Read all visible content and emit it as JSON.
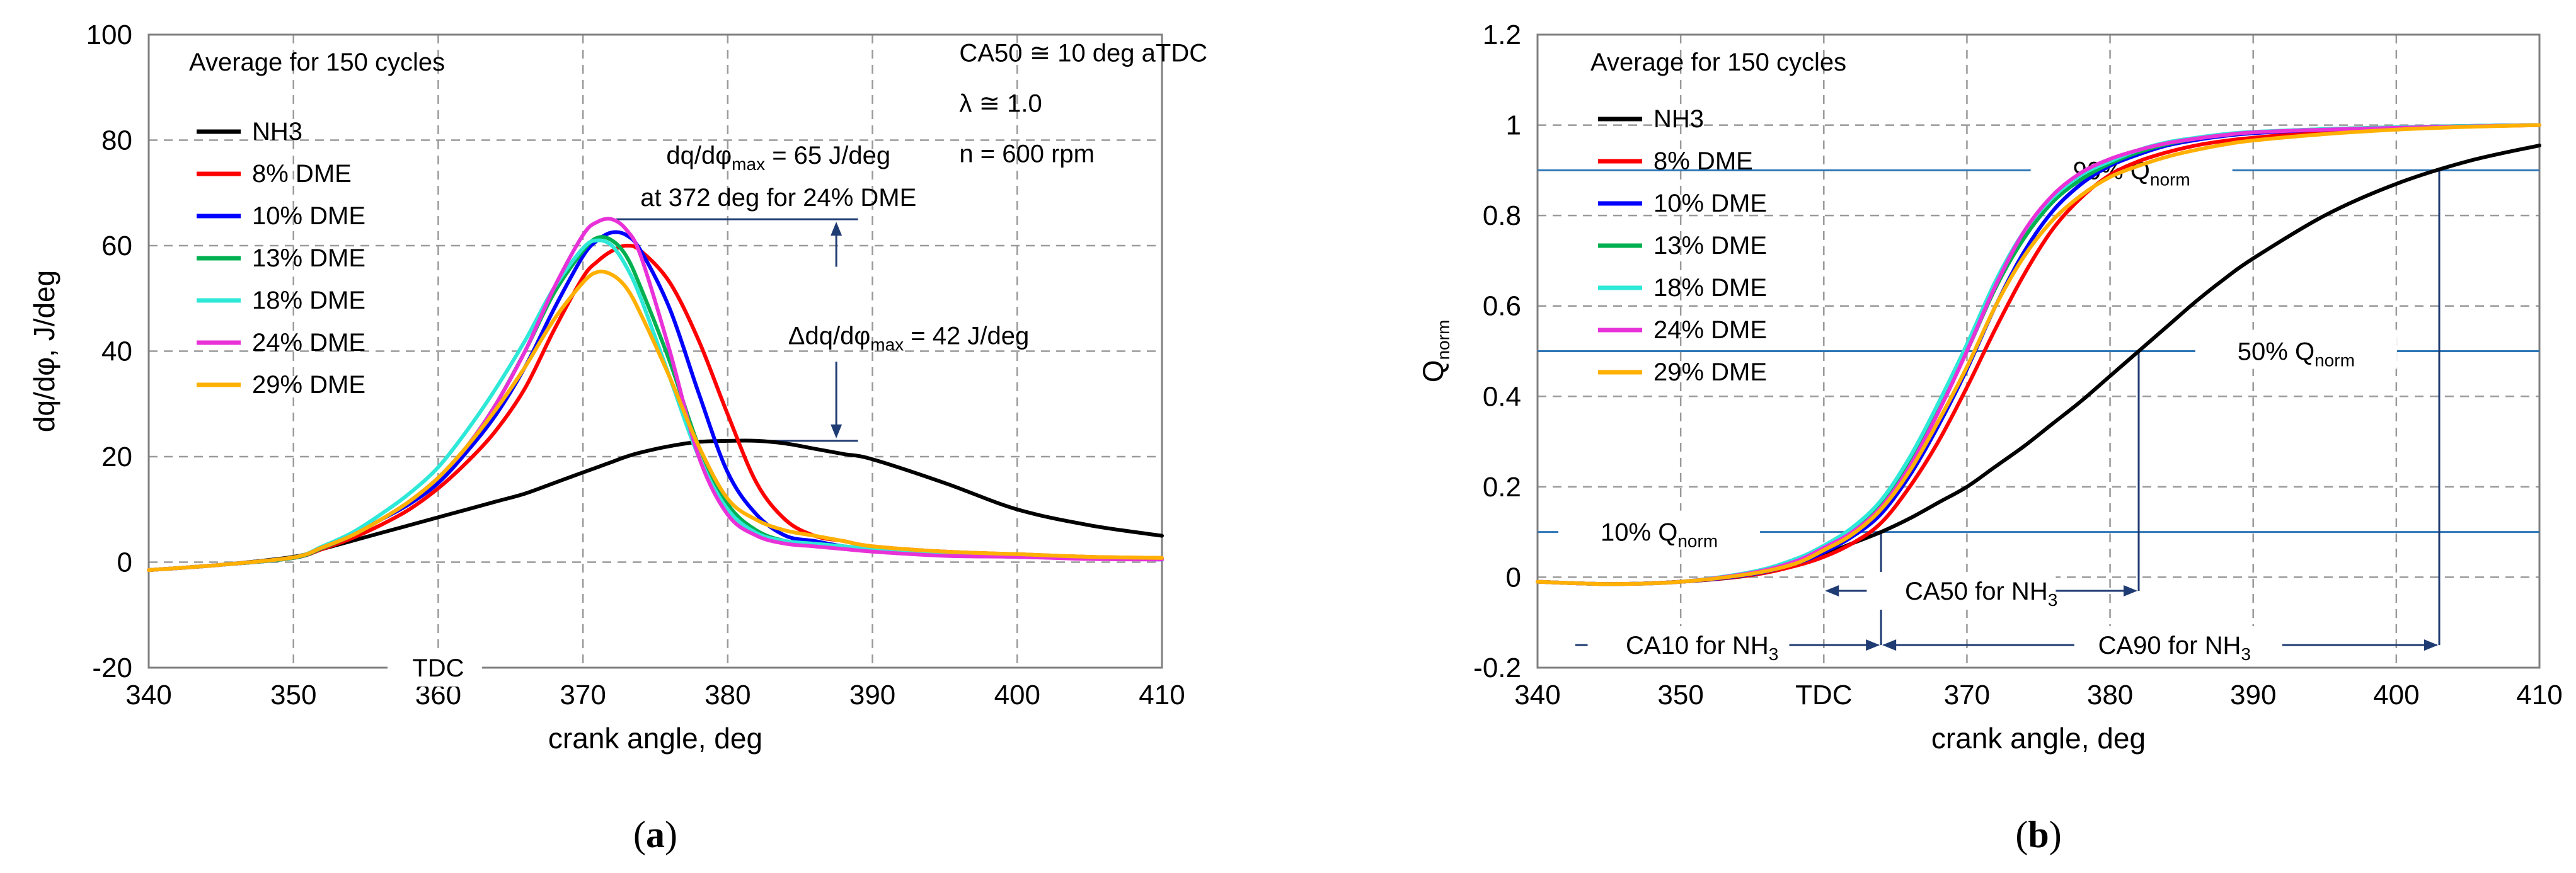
{
  "chart_data": [
    {
      "type": "line",
      "panel_label": "a",
      "title": "",
      "xlabel": "crank angle, deg",
      "ylabel": "dq/dφ, J/deg",
      "xlim": [
        340,
        410
      ],
      "ylim": [
        -20,
        100
      ],
      "xticks": [
        340,
        350,
        360,
        370,
        380,
        390,
        400,
        410
      ],
      "yticks": [
        -20,
        0,
        20,
        40,
        60,
        80,
        100
      ],
      "xtick_labels": [
        "340",
        "350",
        "360",
        "370",
        "380",
        "390",
        "400",
        "410"
      ],
      "ytick_labels": [
        "-20",
        "0",
        "20",
        "40",
        "60",
        "80",
        "100"
      ],
      "grid": true,
      "legend_position": "upper-left",
      "legend_header": "Average for 150 cycles",
      "conditions": [
        "CA50 ≅ 10 deg aTDC",
        "λ ≅ 1.0",
        "n = 600 rpm"
      ],
      "tdc_label": "TDC",
      "annotations": {
        "peak_line1": "dq/dφ",
        "peak_sub": "max",
        "peak_line1_tail": " = 65 J/deg",
        "peak_line2": "at 372 deg for 24% DME",
        "delta_prefix": "Δdq/dφ",
        "delta_sub": "max",
        "delta_tail": " = 42 J/deg"
      },
      "x": [
        340,
        345,
        350,
        352,
        354,
        356,
        358,
        360,
        362,
        364,
        366,
        368,
        370,
        371,
        372,
        373,
        374,
        376,
        378,
        380,
        382,
        384,
        386,
        388,
        390,
        395,
        400,
        405,
        410
      ],
      "series": [
        {
          "name": "NH3",
          "color": "#000000",
          "values": [
            -1.5,
            -0.5,
            1.0,
            2.5,
            4.0,
            5.5,
            7.0,
            8.5,
            10.0,
            11.5,
            13.0,
            15.0,
            17.0,
            18.0,
            19.0,
            20.0,
            20.8,
            22.0,
            22.8,
            23.0,
            23.0,
            22.5,
            21.5,
            20.5,
            19.5,
            15.0,
            10.0,
            7.0,
            5.0
          ]
        },
        {
          "name": "8% DME",
          "color": "#ff0000",
          "values": [
            -1.5,
            -0.5,
            0.8,
            2.5,
            4.5,
            7.0,
            10.0,
            14.0,
            19.0,
            25.0,
            33.0,
            44.0,
            54.0,
            57.0,
            59.0,
            60.0,
            59.0,
            53.0,
            42.0,
            28.0,
            15.0,
            8.0,
            5.0,
            4.0,
            3.0,
            2.0,
            1.5,
            1.0,
            0.8
          ]
        },
        {
          "name": "10% DME",
          "color": "#0000ff",
          "values": [
            -1.5,
            -0.5,
            0.8,
            2.7,
            5.0,
            8.0,
            11.0,
            15.0,
            21.0,
            28.0,
            37.0,
            48.0,
            58.0,
            61.0,
            62.5,
            62.0,
            59.0,
            48.0,
            32.0,
            17.0,
            9.0,
            5.0,
            4.0,
            3.0,
            2.5,
            1.5,
            1.2,
            0.8,
            0.5
          ]
        },
        {
          "name": "13% DME",
          "color": "#00b050",
          "values": [
            -1.5,
            -0.5,
            0.8,
            2.7,
            5.0,
            8.0,
            11.5,
            16.0,
            22.0,
            30.0,
            40.0,
            51.0,
            59.0,
            61.5,
            61.0,
            58.0,
            52.0,
            38.0,
            22.0,
            11.0,
            6.0,
            4.0,
            3.5,
            3.0,
            2.5,
            1.5,
            1.0,
            0.7,
            0.5
          ]
        },
        {
          "name": "18% DME",
          "color": "#2ee8d8",
          "values": [
            -1.5,
            -0.5,
            0.9,
            3.0,
            5.5,
            9.0,
            13.0,
            18.0,
            25.0,
            33.0,
            42.0,
            52.0,
            59.5,
            61.0,
            60.0,
            56.0,
            50.0,
            35.0,
            20.0,
            10.0,
            5.5,
            4.0,
            3.5,
            3.0,
            2.5,
            1.5,
            1.0,
            0.7,
            0.5
          ]
        },
        {
          "name": "24% DME",
          "color": "#e832d8",
          "values": [
            -1.5,
            -0.5,
            0.9,
            2.8,
            5.0,
            8.0,
            11.5,
            16.0,
            22.0,
            30.0,
            40.0,
            52.0,
            62.0,
            64.5,
            65.0,
            63.0,
            58.0,
            40.0,
            20.0,
            9.0,
            5.0,
            3.5,
            3.0,
            2.5,
            2.0,
            1.2,
            1.0,
            0.6,
            0.5
          ]
        },
        {
          "name": "29% DME",
          "color": "#ffb000",
          "values": [
            -1.5,
            -0.5,
            0.9,
            2.8,
            5.0,
            8.0,
            11.5,
            16.0,
            22.0,
            29.0,
            37.0,
            46.0,
            53.0,
            55.0,
            54.5,
            52.0,
            47.0,
            35.0,
            22.0,
            12.0,
            8.0,
            6.0,
            5.0,
            4.0,
            3.0,
            2.0,
            1.5,
            1.0,
            0.8
          ]
        }
      ]
    },
    {
      "type": "line",
      "panel_label": "b",
      "title": "",
      "xlabel": "crank angle, deg",
      "ylabel": "Q",
      "ylabel_sub": "norm",
      "xlim": [
        340,
        410
      ],
      "ylim": [
        -0.2,
        1.2
      ],
      "xticks": [
        340,
        350,
        360,
        370,
        380,
        390,
        400,
        410
      ],
      "yticks": [
        -0.2,
        0,
        0.2,
        0.4,
        0.6,
        0.8,
        1.0,
        1.2
      ],
      "xtick_labels": [
        "340",
        "350",
        "TDC",
        "370",
        "380",
        "390",
        "400",
        "410"
      ],
      "ytick_labels": [
        "-0.2",
        "0",
        "0.2",
        "0.4",
        "0.6",
        "0.8",
        "1",
        "1.2"
      ],
      "grid": true,
      "legend_position": "upper-left",
      "legend_header": "Average for 150 cycles",
      "reference_levels": [
        {
          "value": 0.9,
          "label": "90% Q",
          "sub": "norm"
        },
        {
          "value": 0.5,
          "label": "50% Q",
          "sub": "norm"
        },
        {
          "value": 0.1,
          "label": "10% Q",
          "sub": "norm"
        }
      ],
      "crank_markers": [
        {
          "label": "CA10 for NH",
          "sub": "3",
          "start": 364,
          "end": 364
        },
        {
          "label": "CA50 for NH",
          "sub": "3",
          "start": 360,
          "end": 382
        },
        {
          "label": "CA90 for NH",
          "sub": "3",
          "start": 364,
          "end": 403
        }
      ],
      "x": [
        340,
        345,
        350,
        355,
        358,
        360,
        362,
        364,
        366,
        368,
        370,
        372,
        374,
        376,
        378,
        380,
        382,
        384,
        386,
        388,
        390,
        395,
        400,
        405,
        410
      ],
      "series": [
        {
          "name": "NH3",
          "color": "#000000",
          "values": [
            -0.01,
            -0.015,
            -0.01,
            0.005,
            0.03,
            0.05,
            0.075,
            0.1,
            0.13,
            0.165,
            0.2,
            0.245,
            0.29,
            0.34,
            0.39,
            0.445,
            0.5,
            0.555,
            0.61,
            0.66,
            0.705,
            0.8,
            0.87,
            0.92,
            0.955
          ]
        },
        {
          "name": "8% DME",
          "color": "#ff0000",
          "values": [
            -0.01,
            -0.015,
            -0.01,
            0.005,
            0.025,
            0.045,
            0.075,
            0.12,
            0.2,
            0.3,
            0.42,
            0.55,
            0.67,
            0.77,
            0.84,
            0.89,
            0.92,
            0.94,
            0.955,
            0.965,
            0.972,
            0.985,
            0.993,
            0.997,
            1.0
          ]
        },
        {
          "name": "10% DME",
          "color": "#0000ff",
          "values": [
            -0.01,
            -0.015,
            -0.01,
            0.007,
            0.03,
            0.055,
            0.09,
            0.14,
            0.225,
            0.335,
            0.46,
            0.6,
            0.72,
            0.81,
            0.87,
            0.91,
            0.935,
            0.955,
            0.967,
            0.976,
            0.982,
            0.99,
            0.995,
            0.998,
            1.0
          ]
        },
        {
          "name": "13% DME",
          "color": "#00b050",
          "values": [
            -0.01,
            -0.015,
            -0.01,
            0.01,
            0.035,
            0.065,
            0.1,
            0.16,
            0.25,
            0.37,
            0.5,
            0.64,
            0.75,
            0.83,
            0.88,
            0.915,
            0.94,
            0.958,
            0.97,
            0.978,
            0.984,
            0.991,
            0.995,
            0.998,
            1.0
          ]
        },
        {
          "name": "18% DME",
          "color": "#2ee8d8",
          "values": [
            -0.01,
            -0.015,
            -0.01,
            0.012,
            0.04,
            0.07,
            0.11,
            0.17,
            0.265,
            0.385,
            0.515,
            0.655,
            0.765,
            0.84,
            0.89,
            0.92,
            0.945,
            0.962,
            0.972,
            0.98,
            0.985,
            0.991,
            0.995,
            0.998,
            1.0
          ]
        },
        {
          "name": "24% DME",
          "color": "#e832d8",
          "values": [
            -0.01,
            -0.015,
            -0.01,
            0.01,
            0.035,
            0.065,
            0.1,
            0.155,
            0.245,
            0.365,
            0.5,
            0.645,
            0.765,
            0.845,
            0.895,
            0.925,
            0.945,
            0.96,
            0.97,
            0.978,
            0.984,
            0.99,
            0.994,
            0.997,
            1.0
          ]
        },
        {
          "name": "29% DME",
          "color": "#ffb000",
          "values": [
            -0.01,
            -0.015,
            -0.01,
            0.008,
            0.03,
            0.06,
            0.095,
            0.15,
            0.235,
            0.345,
            0.465,
            0.6,
            0.71,
            0.79,
            0.845,
            0.885,
            0.91,
            0.93,
            0.945,
            0.957,
            0.966,
            0.98,
            0.99,
            0.996,
            1.0
          ]
        }
      ]
    }
  ]
}
